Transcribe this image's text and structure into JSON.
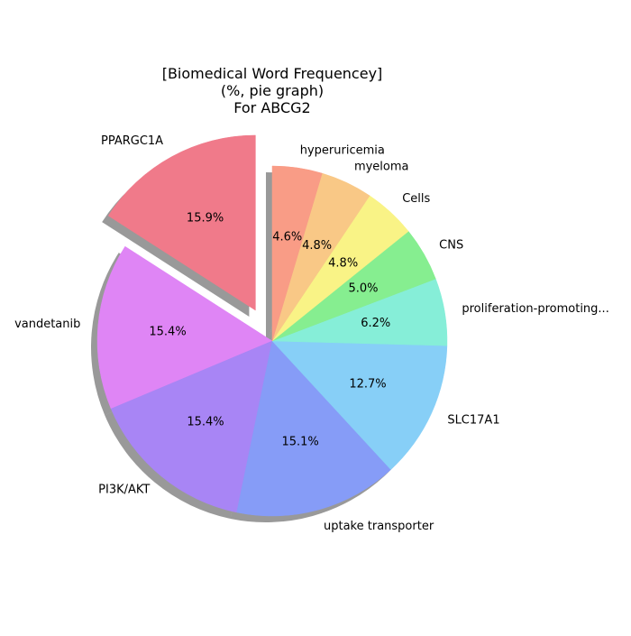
{
  "chart_data": {
    "type": "pie",
    "title": [
      "[Biomedical Word Frequencey]",
      "(%, pie graph)",
      "For ABCG2"
    ],
    "slices": [
      {
        "label": "PPARGC1A",
        "value": 15.9,
        "pct_label": "15.9%",
        "color": "#f07a8a",
        "exploded": true
      },
      {
        "label": "vandetanib",
        "value": 15.4,
        "pct_label": "15.4%",
        "color": "#df85f5",
        "exploded": false
      },
      {
        "label": "PI3K/AKT",
        "value": 15.4,
        "pct_label": "15.4%",
        "color": "#a885f5",
        "exploded": false
      },
      {
        "label": "uptake transporter",
        "value": 15.1,
        "pct_label": "15.1%",
        "color": "#869cf7",
        "exploded": false
      },
      {
        "label": "SLC17A1",
        "value": 12.7,
        "pct_label": "12.7%",
        "color": "#87cff7",
        "exploded": false
      },
      {
        "label": "proliferation-promoting...",
        "value": 6.2,
        "pct_label": "6.2%",
        "color": "#86eed8",
        "exploded": false
      },
      {
        "label": "CNS",
        "value": 5.0,
        "pct_label": "5.0%",
        "color": "#86ee90",
        "exploded": false
      },
      {
        "label": "Cells",
        "value": 4.8,
        "pct_label": "4.8%",
        "color": "#f9f386",
        "exploded": false
      },
      {
        "label": "myeloma",
        "value": 4.8,
        "pct_label": "4.8%",
        "color": "#f9c886",
        "exploded": false
      },
      {
        "label": "hyperuricemia",
        "value": 4.6,
        "pct_label": "4.6%",
        "color": "#f99c86",
        "exploded": false
      }
    ],
    "start_angle_deg": 90,
    "direction": "counterclockwise",
    "shadow": true
  }
}
